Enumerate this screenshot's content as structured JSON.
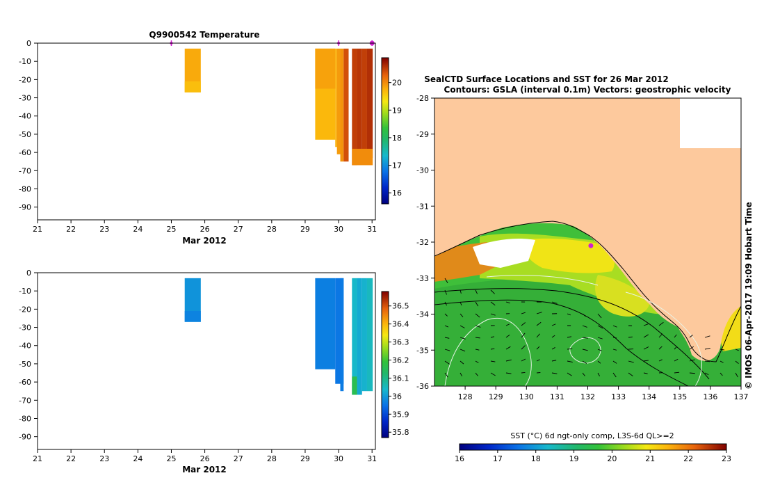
{
  "colors": {
    "land": "#fdc99d",
    "frame": "#000000",
    "marker": "#d020d0",
    "contour_white": "#e8f4e8",
    "contour_black": "#000000"
  },
  "chart_data": [
    {
      "type": "heatmap",
      "name": "temperature-profile",
      "title": "Q9900542  Temperature",
      "xlabel": "Mar 2012",
      "x_ticks": [
        "21",
        "22",
        "23",
        "24",
        "25",
        "26",
        "27",
        "28",
        "29",
        "30",
        "31"
      ],
      "xlim": [
        21,
        31.1
      ],
      "y_ticks": [
        "0",
        "-10",
        "-20",
        "-30",
        "-40",
        "-50",
        "-60",
        "-70",
        "-80",
        "-90"
      ],
      "ylim": [
        -97,
        0
      ],
      "profile_days": [
        25.0,
        30.0,
        31.0
      ],
      "colorbar": {
        "vmin": 15.6,
        "vmax": 20.9,
        "ticks": [
          "16",
          "17",
          "18",
          "19",
          "20"
        ],
        "tick_values": [
          16,
          17,
          18,
          19,
          20
        ]
      },
      "profiles": [
        {
          "x0": 25.4,
          "x1": 25.88,
          "ztop": -3,
          "zbot": -27,
          "value": 19.8
        },
        {
          "x0": 25.4,
          "x1": 25.88,
          "ztop": -21,
          "zbot": -27,
          "value": 19.65
        },
        {
          "x0": 29.3,
          "x1": 29.9,
          "ztop": -3,
          "zbot": -53,
          "value": 19.7
        },
        {
          "x0": 29.3,
          "x1": 29.9,
          "ztop": -3,
          "zbot": -25,
          "value": 19.85
        },
        {
          "x0": 29.9,
          "x1": 29.95,
          "ztop": -3,
          "zbot": -57,
          "value": 19.75
        },
        {
          "x0": 29.95,
          "x1": 30.05,
          "ztop": -3,
          "zbot": -61,
          "value": 19.9
        },
        {
          "x0": 30.05,
          "x1": 30.15,
          "ztop": -3,
          "zbot": -65,
          "value": 19.95
        },
        {
          "x0": 30.15,
          "x1": 30.3,
          "ztop": -3,
          "zbot": -65,
          "value": 20.4
        },
        {
          "x0": 30.4,
          "x1": 30.55,
          "ztop": -3,
          "zbot": -67,
          "value": 20.5
        },
        {
          "x0": 30.55,
          "x1": 30.7,
          "ztop": -3,
          "zbot": -66,
          "value": 20.55
        },
        {
          "x0": 30.7,
          "x1": 30.85,
          "ztop": -3,
          "zbot": -65,
          "value": 20.5
        },
        {
          "x0": 30.85,
          "x1": 31.02,
          "ztop": -3,
          "zbot": -63,
          "value": 20.6
        },
        {
          "x0": 30.4,
          "x1": 31.02,
          "ztop": -58,
          "zbot": -67,
          "value": 20.0
        }
      ]
    },
    {
      "type": "heatmap",
      "name": "salinity-profile",
      "title": "",
      "xlabel": "Mar 2012",
      "x_ticks": [
        "21",
        "22",
        "23",
        "24",
        "25",
        "26",
        "27",
        "28",
        "29",
        "30",
        "31"
      ],
      "xlim": [
        21,
        31.1
      ],
      "y_ticks": [
        "0",
        "-10",
        "-20",
        "-30",
        "-40",
        "-50",
        "-60",
        "-70",
        "-80",
        "-90"
      ],
      "ylim": [
        -97,
        0
      ],
      "colorbar": {
        "vmin": 35.77,
        "vmax": 36.58,
        "ticks": [
          "35.8",
          "35.9",
          "36",
          "36.1",
          "36.2",
          "36.3",
          "36.4",
          "36.5"
        ],
        "tick_values": [
          35.8,
          35.9,
          36.0,
          36.1,
          36.2,
          36.3,
          36.4,
          36.5
        ]
      },
      "profiles": [
        {
          "x0": 25.4,
          "x1": 25.88,
          "ztop": -3,
          "zbot": -27,
          "value": 35.99
        },
        {
          "x0": 25.4,
          "x1": 25.88,
          "ztop": -21,
          "zbot": -27,
          "value": 35.97
        },
        {
          "x0": 29.3,
          "x1": 29.9,
          "ztop": -3,
          "zbot": -53,
          "value": 35.965
        },
        {
          "x0": 29.9,
          "x1": 30.15,
          "ztop": -3,
          "zbot": -61,
          "value": 35.955
        },
        {
          "x0": 30.05,
          "x1": 30.15,
          "ztop": -3,
          "zbot": -65,
          "value": 35.96
        },
        {
          "x0": 30.4,
          "x1": 30.55,
          "ztop": -3,
          "zbot": -67,
          "value": 36.04
        },
        {
          "x0": 30.55,
          "x1": 30.7,
          "ztop": -3,
          "zbot": -67,
          "value": 36.02
        },
        {
          "x0": 30.7,
          "x1": 30.85,
          "ztop": -3,
          "zbot": -65,
          "value": 36.03
        },
        {
          "x0": 30.85,
          "x1": 31.02,
          "ztop": -3,
          "zbot": -65,
          "value": 36.05
        },
        {
          "x0": 30.4,
          "x1": 30.55,
          "ztop": -57,
          "zbot": -67,
          "value": 36.16
        }
      ]
    },
    {
      "type": "heatmap",
      "name": "sst-map",
      "title": "SealCTD Surface Locations and SST for 26 Mar 2012",
      "subtitle": "Contours: GSLA (interval 0.1m) Vectors: geostrophic velocity",
      "x_ticks": [
        "128",
        "129",
        "130",
        "131",
        "132",
        "133",
        "134",
        "135",
        "136",
        "137"
      ],
      "xlim": [
        127.0,
        137.0
      ],
      "y_ticks": [
        "-28",
        "-29",
        "-30",
        "-31",
        "-32",
        "-33",
        "-34",
        "-35",
        "-36"
      ],
      "ylim": [
        -36.0,
        -28.0
      ],
      "colorbar": {
        "label": "SST (°C) 6d ngt-only comp, L3S-6d QL>=2",
        "vmin": 16,
        "vmax": 23,
        "ticks": [
          "16",
          "17",
          "18",
          "19",
          "20",
          "21",
          "22",
          "23"
        ]
      },
      "seal_location": {
        "lon": 132.1,
        "lat": -32.1
      },
      "credit": "© IMOS 06-Apr-2017 19:09 Hobart Time"
    }
  ]
}
